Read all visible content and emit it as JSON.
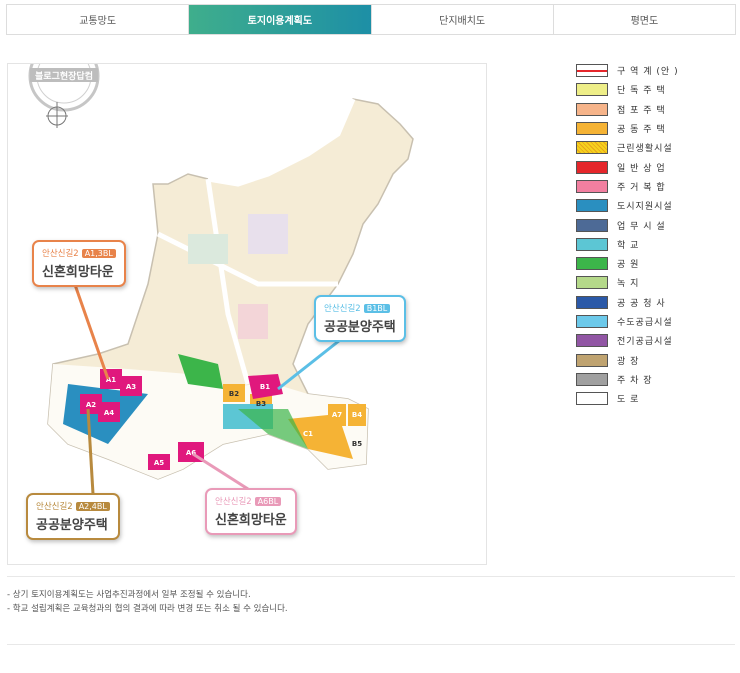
{
  "tabs": [
    {
      "label": "교통망도",
      "active": false
    },
    {
      "label": "토지이용계획도",
      "active": true
    },
    {
      "label": "단지배치도",
      "active": false
    },
    {
      "label": "평면도",
      "active": false
    }
  ],
  "watermark": "블로그현장답컴",
  "map": {
    "blocks": [
      "A1",
      "A2",
      "A3",
      "A4",
      "A5",
      "A6",
      "A7",
      "B1",
      "B2",
      "B3",
      "B4",
      "B5",
      "C1"
    ],
    "callouts": [
      {
        "prefix": "안산신길2",
        "tag": "A1,3BL",
        "title": "신혼희망타운",
        "color": "#e8834a"
      },
      {
        "prefix": "안산신길2",
        "tag": "B1BL",
        "title": "공공분양주택",
        "color": "#5bbfe6"
      },
      {
        "prefix": "안산신길2",
        "tag": "A2,4BL",
        "title": "공공분양주택",
        "color": "#b88a3e"
      },
      {
        "prefix": "안산신길2",
        "tag": "A6BL",
        "title": "신혼희망타운",
        "color": "#e99ab8"
      }
    ]
  },
  "legend": [
    {
      "label": "구 역 계 (안 )",
      "color": "#ffffff",
      "pattern": "boundary"
    },
    {
      "label": "단 독 주 택",
      "color": "#eeee88"
    },
    {
      "label": "점 포 주 택",
      "color": "#f6b48a"
    },
    {
      "label": "공 동 주 택",
      "color": "#f5b335"
    },
    {
      "label": "근린생활시설",
      "color": "#f5d21c",
      "pattern": "hatch"
    },
    {
      "label": "일 반 상 업",
      "color": "#e5262b"
    },
    {
      "label": "주 거 복 합",
      "color": "#f27fa0"
    },
    {
      "label": "도시지원시설",
      "color": "#2a8fc0"
    },
    {
      "label": "업 무 시 설",
      "color": "#4d6a96"
    },
    {
      "label": "학 교",
      "color": "#5cc6d4"
    },
    {
      "label": "공 원",
      "color": "#3cb54a"
    },
    {
      "label": "녹 지",
      "color": "#b5d98a"
    },
    {
      "label": "공 공 청 사",
      "color": "#2b59a8"
    },
    {
      "label": "수도공급시설",
      "color": "#6cc9ea"
    },
    {
      "label": "전기공급시설",
      "color": "#9156a4"
    },
    {
      "label": "광 장",
      "color": "#bfa370"
    },
    {
      "label": "주 차 장",
      "color": "#a0a0a0"
    },
    {
      "label": "도 로",
      "color": "#ffffff"
    }
  ],
  "notes": [
    "- 상기 토지이용계획도는 사업추진과정에서 일부 조정될 수 있습니다.",
    "- 학교 설립계획은 교육청과의 협의 결과에 따라 변경 또는 취소 될 수 있습니다."
  ]
}
